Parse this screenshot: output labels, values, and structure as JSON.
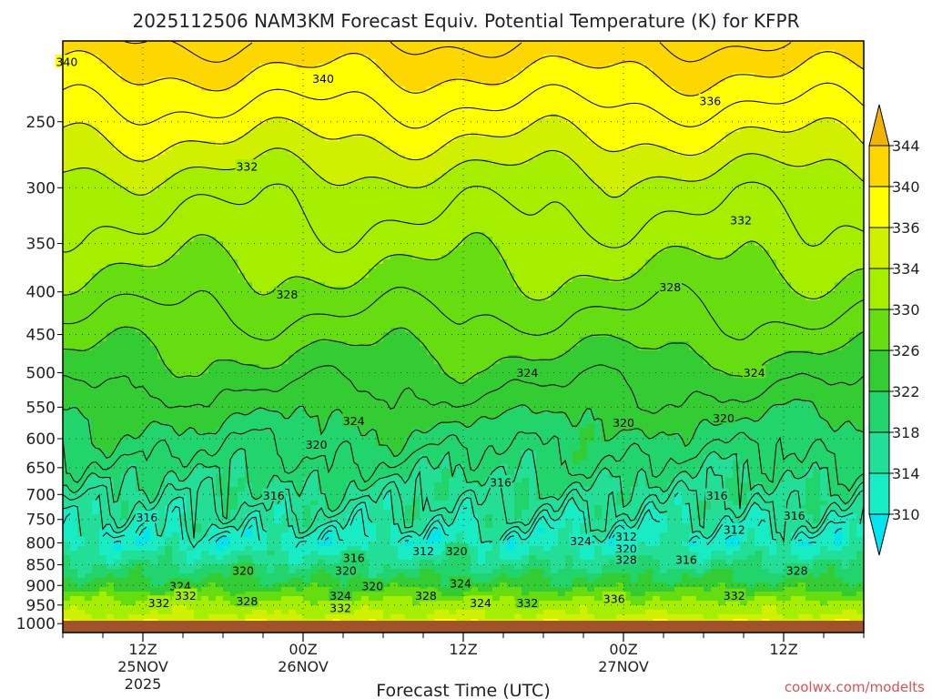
{
  "chart_data": {
    "type": "heatmap",
    "title": "2025112506 NAM3KM Forecast Equiv. Potential Temperature (K) for KFPR",
    "xlabel": "Forecast Time (UTC)",
    "ylabel": "",
    "watermark": "coolwx.com/modelts",
    "y_axis": {
      "scale": "pressure (hPa), reversed",
      "range": [
        1025,
        200
      ],
      "ticks": [
        250,
        300,
        350,
        400,
        450,
        500,
        550,
        600,
        650,
        700,
        750,
        800,
        850,
        900,
        950,
        1000
      ]
    },
    "x_axis": {
      "range_hours": [
        0,
        60
      ],
      "ticks": [
        {
          "hour": 6,
          "labels": [
            "12Z",
            "25NOV",
            "2025"
          ]
        },
        {
          "hour": 18,
          "labels": [
            "00Z",
            "26NOV"
          ]
        },
        {
          "hour": 30,
          "labels": [
            "12Z"
          ]
        },
        {
          "hour": 42,
          "labels": [
            "00Z",
            "27NOV"
          ]
        },
        {
          "hour": 54,
          "labels": [
            "12Z"
          ]
        }
      ]
    },
    "colorbar": {
      "unit": "K",
      "levels": [
        310,
        314,
        318,
        322,
        326,
        330,
        334,
        336,
        340,
        344
      ],
      "colors": [
        "#00e5ee",
        "#18ecc4",
        "#22de96",
        "#22d46c",
        "#33cc33",
        "#66dd11",
        "#a6ee00",
        "#d0f000",
        "#ffff00",
        "#ffd700",
        "#f0b400"
      ]
    },
    "profile_levels": [
      200,
      250,
      300,
      350,
      400,
      450,
      500,
      550,
      600,
      650,
      700,
      750,
      800,
      850,
      900,
      950,
      1000,
      1025
    ],
    "profile_theta_e": [
      342,
      337,
      333,
      331,
      329,
      327,
      325,
      323,
      321,
      319,
      317,
      315,
      312,
      318,
      324,
      332,
      336,
      337
    ],
    "contour_labels": [
      {
        "text": "340",
        "hour": 0.3,
        "p": 212
      },
      {
        "text": "340",
        "hour": 19.5,
        "p": 222
      },
      {
        "text": "336",
        "hour": 48.5,
        "p": 236
      },
      {
        "text": "332",
        "hour": 13.8,
        "p": 283
      },
      {
        "text": "332",
        "hour": 50.8,
        "p": 328
      },
      {
        "text": "328",
        "hour": 16.8,
        "p": 403
      },
      {
        "text": "328",
        "hour": 45.5,
        "p": 395
      },
      {
        "text": "324",
        "hour": 34.8,
        "p": 500
      },
      {
        "text": "324",
        "hour": 51.8,
        "p": 500
      },
      {
        "text": "324",
        "hour": 21.8,
        "p": 571
      },
      {
        "text": "320",
        "hour": 19.0,
        "p": 610
      },
      {
        "text": "320",
        "hour": 42.0,
        "p": 574
      },
      {
        "text": "320",
        "hour": 49.5,
        "p": 567
      },
      {
        "text": "316",
        "hour": 15.8,
        "p": 702
      },
      {
        "text": "316",
        "hour": 32.8,
        "p": 677
      },
      {
        "text": "316",
        "hour": 49.0,
        "p": 702
      },
      {
        "text": "316",
        "hour": 54.8,
        "p": 742
      },
      {
        "text": "316",
        "hour": 6.3,
        "p": 746
      },
      {
        "text": "312",
        "hour": 42.2,
        "p": 786
      },
      {
        "text": "312",
        "hour": 50.3,
        "p": 772
      },
      {
        "text": "324",
        "hour": 38.8,
        "p": 796
      },
      {
        "text": "320",
        "hour": 42.2,
        "p": 813
      },
      {
        "text": "328",
        "hour": 42.2,
        "p": 838
      },
      {
        "text": "316",
        "hour": 46.7,
        "p": 838
      },
      {
        "text": "316",
        "hour": 21.8,
        "p": 834
      },
      {
        "text": "312",
        "hour": 27.0,
        "p": 818
      },
      {
        "text": "320",
        "hour": 29.5,
        "p": 818
      },
      {
        "text": "320",
        "hour": 13.5,
        "p": 864
      },
      {
        "text": "320",
        "hour": 21.2,
        "p": 864
      },
      {
        "text": "328",
        "hour": 55.0,
        "p": 864
      },
      {
        "text": "324",
        "hour": 8.8,
        "p": 902
      },
      {
        "text": "324",
        "hour": 29.8,
        "p": 895
      },
      {
        "text": "320",
        "hour": 23.2,
        "p": 902
      },
      {
        "text": "332",
        "hour": 9.2,
        "p": 926
      },
      {
        "text": "324",
        "hour": 20.8,
        "p": 926
      },
      {
        "text": "328",
        "hour": 27.2,
        "p": 926
      },
      {
        "text": "332",
        "hour": 7.2,
        "p": 944
      },
      {
        "text": "328",
        "hour": 13.8,
        "p": 940
      },
      {
        "text": "324",
        "hour": 31.3,
        "p": 944
      },
      {
        "text": "332",
        "hour": 20.8,
        "p": 958
      },
      {
        "text": "332",
        "hour": 34.8,
        "p": 944
      },
      {
        "text": "336",
        "hour": 41.3,
        "p": 934
      },
      {
        "text": "332",
        "hour": 50.3,
        "p": 926
      }
    ]
  }
}
